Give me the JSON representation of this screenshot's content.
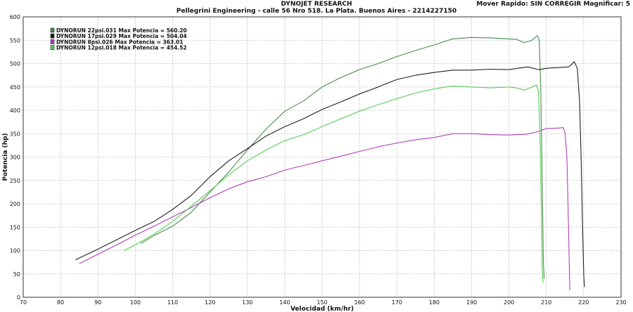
{
  "header": {
    "title": "DYNOJET RESEARCH",
    "subtitle": "Pellegrini Engineering - calle 56 Nro 518. La Plata. Buenos Aires - 2214227150",
    "top_right": "Mover Rapido: SIN CORREGIR  Magnificar: 5"
  },
  "colors": {
    "background": "#ffffff",
    "grid": "#9a9a9a",
    "run1": "#4a8a4a",
    "run2": "#202020",
    "run3": "#b040b8",
    "run4": "#55cc55"
  },
  "chart_data": {
    "type": "line",
    "xlabel": "Velocidad (km/hr)",
    "ylabel": "Potencia (hp)",
    "xlim": [
      70,
      230
    ],
    "ylim": [
      0,
      600
    ],
    "x_ticks": [
      70,
      80,
      90,
      100,
      110,
      120,
      130,
      140,
      150,
      160,
      170,
      180,
      190,
      200,
      210,
      220,
      230
    ],
    "y_ticks": [
      0,
      50,
      100,
      150,
      200,
      250,
      300,
      350,
      400,
      450,
      500,
      550,
      600
    ],
    "grid": true,
    "legend_position": "top-left",
    "series": [
      {
        "name": "DYNORUN 22psi.031 Max Potencia = 560.20",
        "color": "#4a8a4a",
        "points": [
          [
            101.5,
            115
          ],
          [
            105,
            132
          ],
          [
            110,
            152
          ],
          [
            115,
            182
          ],
          [
            120,
            225
          ],
          [
            125,
            268
          ],
          [
            130,
            315
          ],
          [
            135,
            360
          ],
          [
            140,
            398
          ],
          [
            145,
            420
          ],
          [
            150,
            450
          ],
          [
            155,
            470
          ],
          [
            160,
            487
          ],
          [
            165,
            500
          ],
          [
            170,
            515
          ],
          [
            175,
            528
          ],
          [
            180,
            540
          ],
          [
            185,
            553
          ],
          [
            190,
            556
          ],
          [
            195,
            555
          ],
          [
            200,
            553
          ],
          [
            202,
            552
          ],
          [
            204,
            545
          ],
          [
            206,
            549
          ],
          [
            207,
            556
          ],
          [
            207.6,
            560
          ],
          [
            208.1,
            550
          ],
          [
            208.5,
            450
          ],
          [
            208.9,
            250
          ],
          [
            209.2,
            80
          ],
          [
            209.4,
            40
          ]
        ]
      },
      {
        "name": "DYNORUN 17psi.029 Max Potencia = 504.04",
        "color": "#202020",
        "points": [
          [
            84,
            80
          ],
          [
            90,
            103
          ],
          [
            95,
            123
          ],
          [
            100,
            143
          ],
          [
            105,
            162
          ],
          [
            110,
            188
          ],
          [
            115,
            218
          ],
          [
            120,
            258
          ],
          [
            125,
            292
          ],
          [
            130,
            318
          ],
          [
            135,
            345
          ],
          [
            140,
            365
          ],
          [
            145,
            382
          ],
          [
            150,
            402
          ],
          [
            155,
            418
          ],
          [
            160,
            435
          ],
          [
            165,
            450
          ],
          [
            170,
            466
          ],
          [
            175,
            475
          ],
          [
            180,
            481
          ],
          [
            185,
            486
          ],
          [
            190,
            486
          ],
          [
            195,
            488
          ],
          [
            200,
            487
          ],
          [
            205,
            493
          ],
          [
            208,
            487
          ],
          [
            210,
            490
          ],
          [
            214,
            492
          ],
          [
            216,
            493
          ],
          [
            217.5,
            504
          ],
          [
            218.3,
            490
          ],
          [
            218.9,
            420
          ],
          [
            219.3,
            300
          ],
          [
            219.7,
            150
          ],
          [
            220,
            50
          ],
          [
            220.2,
            22
          ]
        ]
      },
      {
        "name": "DYNORUN 8psi.026 Max Potencia = 363.01",
        "color": "#b040b8",
        "points": [
          [
            85,
            72
          ],
          [
            90,
            92
          ],
          [
            95,
            112
          ],
          [
            100,
            133
          ],
          [
            105,
            152
          ],
          [
            110,
            172
          ],
          [
            115,
            192
          ],
          [
            120,
            213
          ],
          [
            125,
            232
          ],
          [
            130,
            247
          ],
          [
            135,
            258
          ],
          [
            140,
            272
          ],
          [
            145,
            282
          ],
          [
            150,
            292
          ],
          [
            155,
            302
          ],
          [
            160,
            312
          ],
          [
            165,
            322
          ],
          [
            170,
            330
          ],
          [
            175,
            337
          ],
          [
            180,
            342
          ],
          [
            185,
            350
          ],
          [
            190,
            350
          ],
          [
            195,
            348
          ],
          [
            200,
            347
          ],
          [
            205,
            349
          ],
          [
            208,
            355
          ],
          [
            210,
            361
          ],
          [
            213,
            362
          ],
          [
            214.5,
            363
          ],
          [
            215,
            352
          ],
          [
            215.5,
            300
          ],
          [
            215.8,
            200
          ],
          [
            216.1,
            80
          ],
          [
            216.3,
            15
          ]
        ]
      },
      {
        "name": "DYNORUN 12psi.018 Max Potencia = 454.52",
        "color": "#55cc55",
        "points": [
          [
            97,
            100
          ],
          [
            100,
            112
          ],
          [
            105,
            135
          ],
          [
            110,
            162
          ],
          [
            115,
            195
          ],
          [
            120,
            228
          ],
          [
            125,
            262
          ],
          [
            130,
            292
          ],
          [
            135,
            315
          ],
          [
            140,
            335
          ],
          [
            145,
            348
          ],
          [
            150,
            365
          ],
          [
            155,
            382
          ],
          [
            160,
            398
          ],
          [
            165,
            412
          ],
          [
            170,
            425
          ],
          [
            175,
            437
          ],
          [
            180,
            446
          ],
          [
            185,
            452
          ],
          [
            190,
            450
          ],
          [
            195,
            448
          ],
          [
            200,
            450
          ],
          [
            202,
            448
          ],
          [
            204,
            443
          ],
          [
            206,
            449
          ],
          [
            207.4,
            454.5
          ],
          [
            207.9,
            440
          ],
          [
            208.3,
            350
          ],
          [
            208.7,
            180
          ],
          [
            208.9,
            60
          ],
          [
            209.1,
            30
          ]
        ]
      }
    ]
  }
}
